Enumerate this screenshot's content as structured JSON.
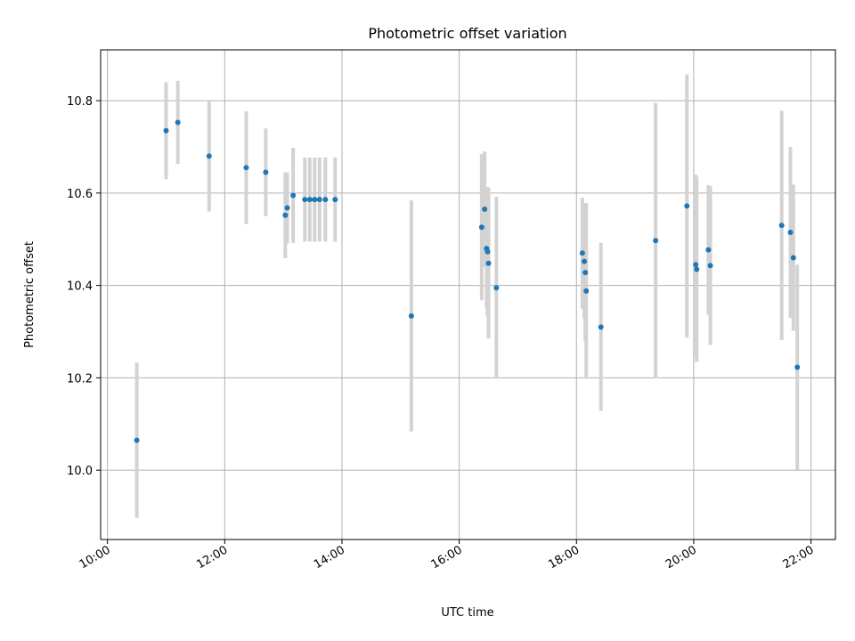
{
  "chart_data": {
    "type": "scatter",
    "title": "Photometric offset variation",
    "xlabel": "UTC time",
    "ylabel": "Photometric offset",
    "xlim": [
      "09:53",
      "22:25"
    ],
    "ylim": [
      9.85,
      10.91
    ],
    "x_ticks": [
      "10:00",
      "12:00",
      "14:00",
      "16:00",
      "18:00",
      "20:00",
      "22:00"
    ],
    "y_ticks": [
      10.0,
      10.2,
      10.4,
      10.6,
      10.8
    ],
    "grid": true,
    "legend": "none",
    "point_color": "#1f77b4",
    "errorbar_color": "#d3d3d3",
    "points": [
      {
        "x": "10:30",
        "y": 10.065,
        "err": 0.168
      },
      {
        "x": "11:00",
        "y": 10.735,
        "err": 0.105
      },
      {
        "x": "11:12",
        "y": 10.753,
        "err": 0.09
      },
      {
        "x": "11:44",
        "y": 10.68,
        "err": 0.12
      },
      {
        "x": "12:22",
        "y": 10.655,
        "err": 0.122
      },
      {
        "x": "12:42",
        "y": 10.645,
        "err": 0.095
      },
      {
        "x": "13:02",
        "y": 10.552,
        "err": 0.093
      },
      {
        "x": "13:04",
        "y": 10.568,
        "err": 0.077
      },
      {
        "x": "13:10",
        "y": 10.595,
        "err": 0.103
      },
      {
        "x": "13:22",
        "y": 10.586,
        "err": 0.091
      },
      {
        "x": "13:27",
        "y": 10.586,
        "err": 0.091
      },
      {
        "x": "13:32",
        "y": 10.586,
        "err": 0.091
      },
      {
        "x": "13:37",
        "y": 10.586,
        "err": 0.091
      },
      {
        "x": "13:43",
        "y": 10.586,
        "err": 0.091
      },
      {
        "x": "13:53",
        "y": 10.586,
        "err": 0.091
      },
      {
        "x": "15:11",
        "y": 10.334,
        "err": 0.25
      },
      {
        "x": "16:23",
        "y": 10.526,
        "err": 0.158
      },
      {
        "x": "16:26",
        "y": 10.565,
        "err": 0.125
      },
      {
        "x": "16:28",
        "y": 10.48,
        "err": 0.13
      },
      {
        "x": "16:29",
        "y": 10.473,
        "err": 0.14
      },
      {
        "x": "16:30",
        "y": 10.448,
        "err": 0.163
      },
      {
        "x": "16:38",
        "y": 10.395,
        "err": 0.197
      },
      {
        "x": "18:06",
        "y": 10.47,
        "err": 0.12
      },
      {
        "x": "18:08",
        "y": 10.452,
        "err": 0.123
      },
      {
        "x": "18:09",
        "y": 10.428,
        "err": 0.15
      },
      {
        "x": "18:10",
        "y": 10.388,
        "err": 0.19
      },
      {
        "x": "18:25",
        "y": 10.31,
        "err": 0.182
      },
      {
        "x": "19:21",
        "y": 10.497,
        "err": 0.298
      },
      {
        "x": "19:53",
        "y": 10.572,
        "err": 0.285
      },
      {
        "x": "20:02",
        "y": 10.445,
        "err": 0.195
      },
      {
        "x": "20:03",
        "y": 10.435,
        "err": 0.2
      },
      {
        "x": "20:15",
        "y": 10.477,
        "err": 0.14
      },
      {
        "x": "20:17",
        "y": 10.443,
        "err": 0.172
      },
      {
        "x": "21:30",
        "y": 10.53,
        "err": 0.248
      },
      {
        "x": "21:39",
        "y": 10.515,
        "err": 0.185
      },
      {
        "x": "21:42",
        "y": 10.46,
        "err": 0.158
      },
      {
        "x": "21:46",
        "y": 10.223,
        "err": 0.222
      }
    ]
  }
}
